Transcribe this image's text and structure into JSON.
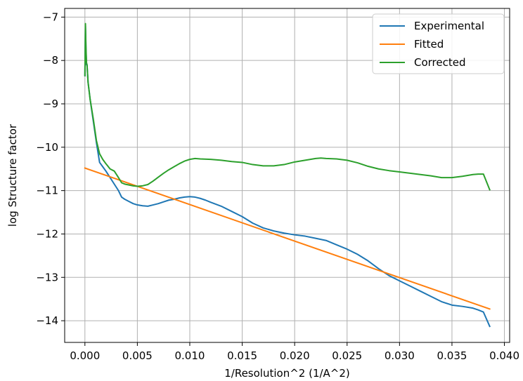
{
  "chart_data": {
    "type": "line",
    "title": "",
    "xlabel": "1/Resolution^2 (1/A^2)",
    "ylabel": "log Structure factor",
    "xlim": [
      -0.00193,
      0.0405
    ],
    "ylim": [
      -14.5,
      -6.8
    ],
    "xticks": [
      0.0,
      0.005,
      0.01,
      0.015,
      0.02,
      0.025,
      0.03,
      0.035,
      0.04
    ],
    "xtick_labels": [
      "0.000",
      "0.005",
      "0.010",
      "0.015",
      "0.020",
      "0.025",
      "0.030",
      "0.035",
      "0.040"
    ],
    "yticks": [
      -14,
      -13,
      -12,
      -11,
      -10,
      -9,
      -8,
      -7
    ],
    "ytick_labels": [
      "−14",
      "−13",
      "−12",
      "−11",
      "−10",
      "−9",
      "−8",
      "−7"
    ],
    "grid": true,
    "legend_position": "top-right",
    "series": [
      {
        "name": "Experimental",
        "color": "#1f77b4",
        "x": [
          0.0,
          5e-05,
          0.0001,
          0.00015,
          0.0002,
          0.0003,
          0.0005,
          0.0008,
          0.0011,
          0.0014,
          0.0017,
          0.002,
          0.0024,
          0.0028,
          0.0032,
          0.0035,
          0.0038,
          0.0042,
          0.0046,
          0.005,
          0.0055,
          0.006,
          0.0065,
          0.007,
          0.0075,
          0.008,
          0.0085,
          0.009,
          0.0095,
          0.01,
          0.0105,
          0.011,
          0.0115,
          0.012,
          0.013,
          0.014,
          0.015,
          0.016,
          0.017,
          0.018,
          0.019,
          0.02,
          0.021,
          0.022,
          0.023,
          0.024,
          0.025,
          0.026,
          0.027,
          0.028,
          0.029,
          0.03,
          0.031,
          0.032,
          0.033,
          0.034,
          0.035,
          0.036,
          0.037,
          0.0375,
          0.038,
          0.0386
        ],
        "y": [
          -8.35,
          -7.2,
          -7.75,
          -8.1,
          -8.1,
          -8.5,
          -8.9,
          -9.4,
          -9.9,
          -10.35,
          -10.45,
          -10.55,
          -10.7,
          -10.85,
          -11.0,
          -11.15,
          -11.2,
          -11.25,
          -11.3,
          -11.33,
          -11.35,
          -11.36,
          -11.33,
          -11.3,
          -11.26,
          -11.22,
          -11.2,
          -11.17,
          -11.15,
          -11.14,
          -11.15,
          -11.18,
          -11.22,
          -11.27,
          -11.36,
          -11.48,
          -11.6,
          -11.75,
          -11.86,
          -11.93,
          -11.98,
          -12.02,
          -12.05,
          -12.1,
          -12.15,
          -12.25,
          -12.35,
          -12.47,
          -12.62,
          -12.8,
          -12.96,
          -13.08,
          -13.2,
          -13.32,
          -13.44,
          -13.56,
          -13.64,
          -13.67,
          -13.71,
          -13.75,
          -13.8,
          -14.13
        ]
      },
      {
        "name": "Fitted",
        "color": "#ff7f0e",
        "x": [
          0.0,
          0.0386
        ],
        "y": [
          -10.48,
          -13.73
        ]
      },
      {
        "name": "Corrected",
        "color": "#2ca02c",
        "x": [
          0.0,
          5e-05,
          0.0001,
          0.00015,
          0.0002,
          0.0003,
          0.0005,
          0.0008,
          0.0011,
          0.0014,
          0.0017,
          0.002,
          0.0024,
          0.0028,
          0.0032,
          0.0035,
          0.0038,
          0.0042,
          0.0046,
          0.005,
          0.0055,
          0.006,
          0.0065,
          0.007,
          0.0075,
          0.008,
          0.0085,
          0.009,
          0.0095,
          0.01,
          0.0105,
          0.011,
          0.012,
          0.013,
          0.014,
          0.015,
          0.016,
          0.017,
          0.018,
          0.019,
          0.02,
          0.021,
          0.022,
          0.0225,
          0.023,
          0.024,
          0.025,
          0.026,
          0.027,
          0.028,
          0.029,
          0.03,
          0.031,
          0.032,
          0.033,
          0.034,
          0.035,
          0.036,
          0.037,
          0.0375,
          0.038,
          0.0386
        ],
        "y": [
          -8.35,
          -7.15,
          -7.7,
          -8.05,
          -8.1,
          -8.5,
          -8.9,
          -9.35,
          -9.85,
          -10.15,
          -10.28,
          -10.38,
          -10.5,
          -10.55,
          -10.7,
          -10.82,
          -10.85,
          -10.87,
          -10.89,
          -10.9,
          -10.89,
          -10.86,
          -10.78,
          -10.69,
          -10.6,
          -10.52,
          -10.45,
          -10.38,
          -10.32,
          -10.28,
          -10.26,
          -10.27,
          -10.28,
          -10.3,
          -10.33,
          -10.35,
          -10.4,
          -10.43,
          -10.43,
          -10.4,
          -10.34,
          -10.3,
          -10.26,
          -10.25,
          -10.26,
          -10.27,
          -10.3,
          -10.36,
          -10.44,
          -10.5,
          -10.54,
          -10.57,
          -10.6,
          -10.63,
          -10.66,
          -10.7,
          -10.7,
          -10.67,
          -10.63,
          -10.62,
          -10.62,
          -10.98
        ]
      }
    ]
  }
}
